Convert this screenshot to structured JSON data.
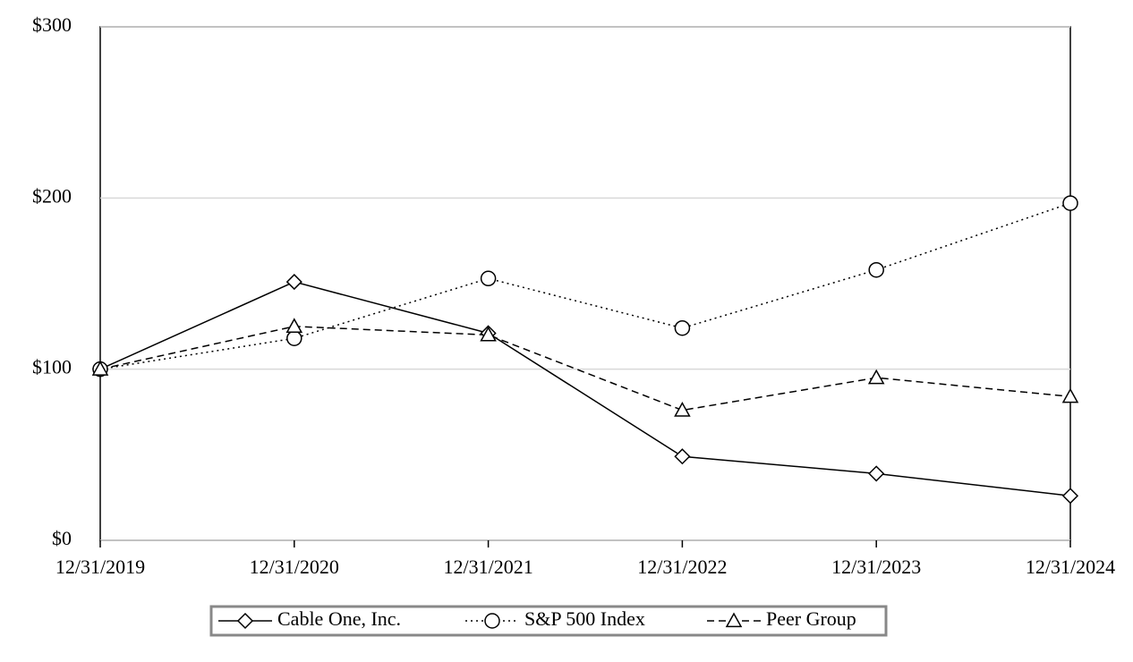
{
  "chart_data": {
    "type": "line",
    "categories": [
      "12/31/2019",
      "12/31/2020",
      "12/31/2021",
      "12/31/2022",
      "12/31/2023",
      "12/31/2024"
    ],
    "series": [
      {
        "name": "Cable One, Inc.",
        "color": "#000000",
        "dash": "solid",
        "marker": "diamond",
        "values": [
          100,
          151,
          121,
          49,
          39,
          26
        ]
      },
      {
        "name": "S&P 500 Index",
        "color": "#000000",
        "dash": "dotted",
        "marker": "circle",
        "values": [
          100,
          118,
          153,
          124,
          158,
          197
        ]
      },
      {
        "name": "Peer Group",
        "color": "#000000",
        "dash": "dashed",
        "marker": "triangle",
        "values": [
          100,
          125,
          120,
          76,
          95,
          84
        ]
      }
    ],
    "ylim": [
      0,
      300
    ],
    "yticks": [
      {
        "value": 0,
        "label": "$0"
      },
      {
        "value": 100,
        "label": "$100"
      },
      {
        "value": 200,
        "label": "$200"
      },
      {
        "value": 300,
        "label": "$300"
      }
    ],
    "grid": true,
    "legend": "bottom"
  }
}
